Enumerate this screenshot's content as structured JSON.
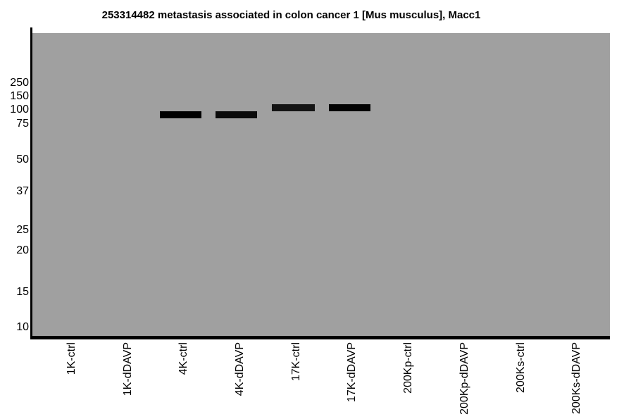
{
  "figure": {
    "title": "253314482 metastasis associated in colon cancer 1 [Mus musculus], Macc1",
    "colors": {
      "page_background": "#ffffff",
      "gel_background": "#a0a0a0",
      "axis": "#000000",
      "text": "#000000"
    }
  },
  "chart_data": {
    "type": "western-blot",
    "title": "253314482 metastasis associated in colon cancer 1 [Mus musculus], Macc1",
    "y_axis": {
      "tick_labels": [
        "250",
        "150",
        "100",
        "75",
        "50",
        "37",
        "25",
        "20",
        "15",
        "10"
      ],
      "tick_values_kda": [
        250,
        150,
        100,
        75,
        50,
        37,
        25,
        20,
        15,
        10
      ],
      "scale": "gel-migration (log-like)",
      "range_kda": [
        10,
        250
      ]
    },
    "x_axis": {
      "lanes": [
        "1K-ctrl",
        "1K-dDAVP",
        "4K-ctrl",
        "4K-dDAVP",
        "17K-ctrl",
        "17K-dDAVP",
        "200Kp-ctrl",
        "200Kp-dDAVP",
        "200Ks-ctrl",
        "200Ks-dDAVP"
      ]
    },
    "bands": [
      {
        "lane": "4K-ctrl",
        "kda_approx": 90,
        "color": "#000000"
      },
      {
        "lane": "4K-dDAVP",
        "kda_approx": 90,
        "color": "#0b0b0b"
      },
      {
        "lane": "17K-ctrl",
        "kda_approx": 105,
        "color": "#141414"
      },
      {
        "lane": "17K-dDAVP",
        "kda_approx": 105,
        "color": "#030303"
      }
    ],
    "legend": null,
    "grid": false
  }
}
